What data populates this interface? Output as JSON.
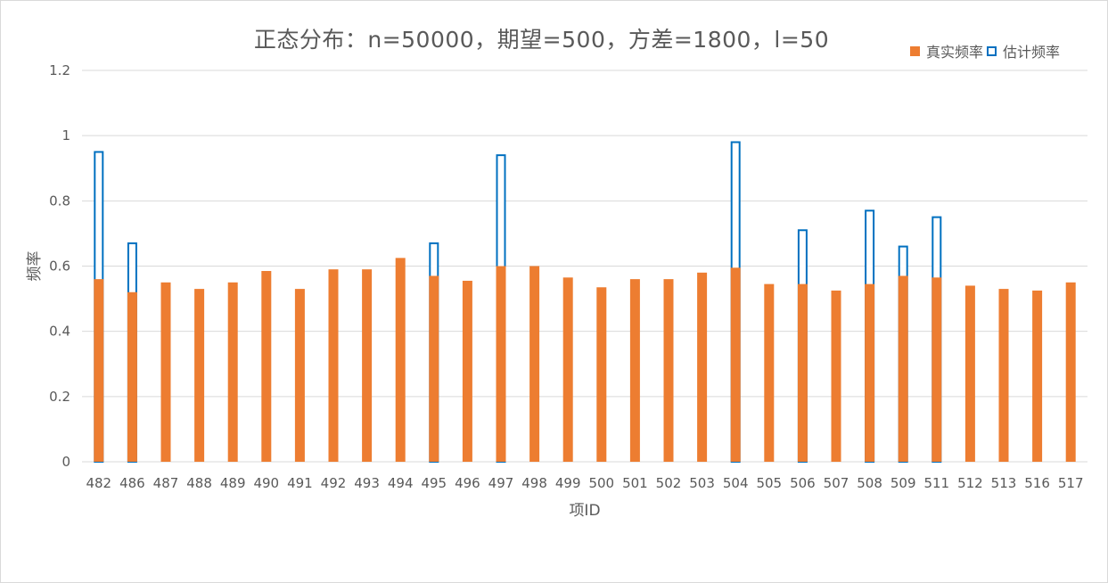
{
  "chart_data": {
    "type": "bar",
    "title": "正态分布：n=50000，期望=500，方差=1800，l=50",
    "xlabel": "项ID",
    "ylabel": "频率",
    "ylim": [
      0,
      1.2
    ],
    "yticks": [
      "0",
      "0.2",
      "0.4",
      "0.6",
      "0.8",
      "1",
      "1.2"
    ],
    "grid": true,
    "legend_position": "top-right",
    "categories": [
      "482",
      "486",
      "487",
      "488",
      "489",
      "490",
      "491",
      "492",
      "493",
      "494",
      "495",
      "496",
      "497",
      "498",
      "499",
      "500",
      "501",
      "502",
      "503",
      "504",
      "505",
      "506",
      "507",
      "508",
      "509",
      "511",
      "512",
      "513",
      "516",
      "517"
    ],
    "series": [
      {
        "name": "估计频率",
        "style": "hollow",
        "color": "#0070C0",
        "values": [
          0.95,
          0.67,
          null,
          null,
          null,
          null,
          null,
          null,
          null,
          null,
          0.67,
          null,
          0.94,
          null,
          null,
          null,
          null,
          null,
          null,
          0.98,
          null,
          0.71,
          null,
          0.77,
          0.66,
          0.75,
          null,
          null,
          null,
          null
        ]
      },
      {
        "name": "真实频率",
        "style": "solid",
        "color": "#ED7D31",
        "values": [
          0.56,
          0.52,
          0.55,
          0.53,
          0.55,
          0.585,
          0.53,
          0.59,
          0.59,
          0.625,
          0.57,
          0.555,
          0.6,
          0.6,
          0.565,
          0.535,
          0.56,
          0.56,
          0.58,
          0.595,
          0.545,
          0.545,
          0.525,
          0.545,
          0.57,
          0.565,
          0.54,
          0.53,
          0.525,
          0.55
        ]
      }
    ]
  },
  "colors": {
    "gridline": "#d9d9d9",
    "axis_text": "#595959"
  }
}
